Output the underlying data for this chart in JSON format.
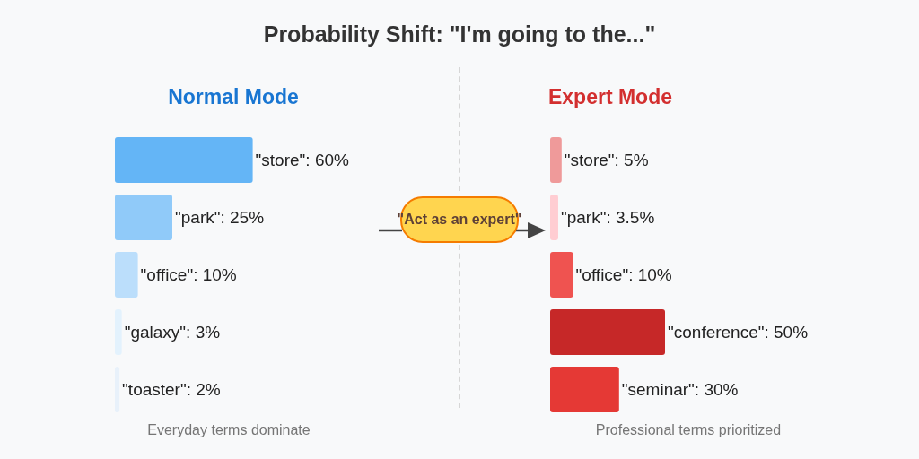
{
  "chart_data": [
    {
      "type": "other",
      "title": "Probability Shift: \"I'm going to the...\""
    },
    {
      "type": "bar",
      "title": "Normal Mode",
      "orientation": "horizontal",
      "tick_labels": false,
      "categories": [
        null,
        null,
        null,
        null,
        null
      ],
      "values": [
        60,
        25,
        10,
        3,
        2
      ],
      "colors": [
        "#64b5f6",
        "#90caf9",
        "#bbdefb",
        "#e3f2fd",
        "#e8f1fa"
      ],
      "value_labels": [
        "\"store\": 60%",
        "\"park\": 25%",
        "\"office\": 10%",
        "\"galaxy\": 3%",
        "\"toaster\": 2%"
      ],
      "annotations": [
        "Everyday terms dominate"
      ]
    },
    {
      "type": "bar",
      "title": "Expert Mode",
      "orientation": "horizontal",
      "tick_labels": false,
      "categories": [
        null,
        null,
        null,
        null,
        null
      ],
      "values": [
        5,
        3.5,
        10,
        50,
        30
      ],
      "colors": [
        "#ef9a9a",
        "#ffcdd2",
        "#ef5350",
        "#c62828",
        "#e53935"
      ],
      "value_labels": [
        "\"store\": 5%",
        "\"park\": 3.5%",
        "\"office\": 10%",
        "\"conference\": 50%",
        "\"seminar\": 30%"
      ],
      "annotations": [
        "Professional terms prioritized",
        "\"Act as an expert\""
      ]
    }
  ]
}
